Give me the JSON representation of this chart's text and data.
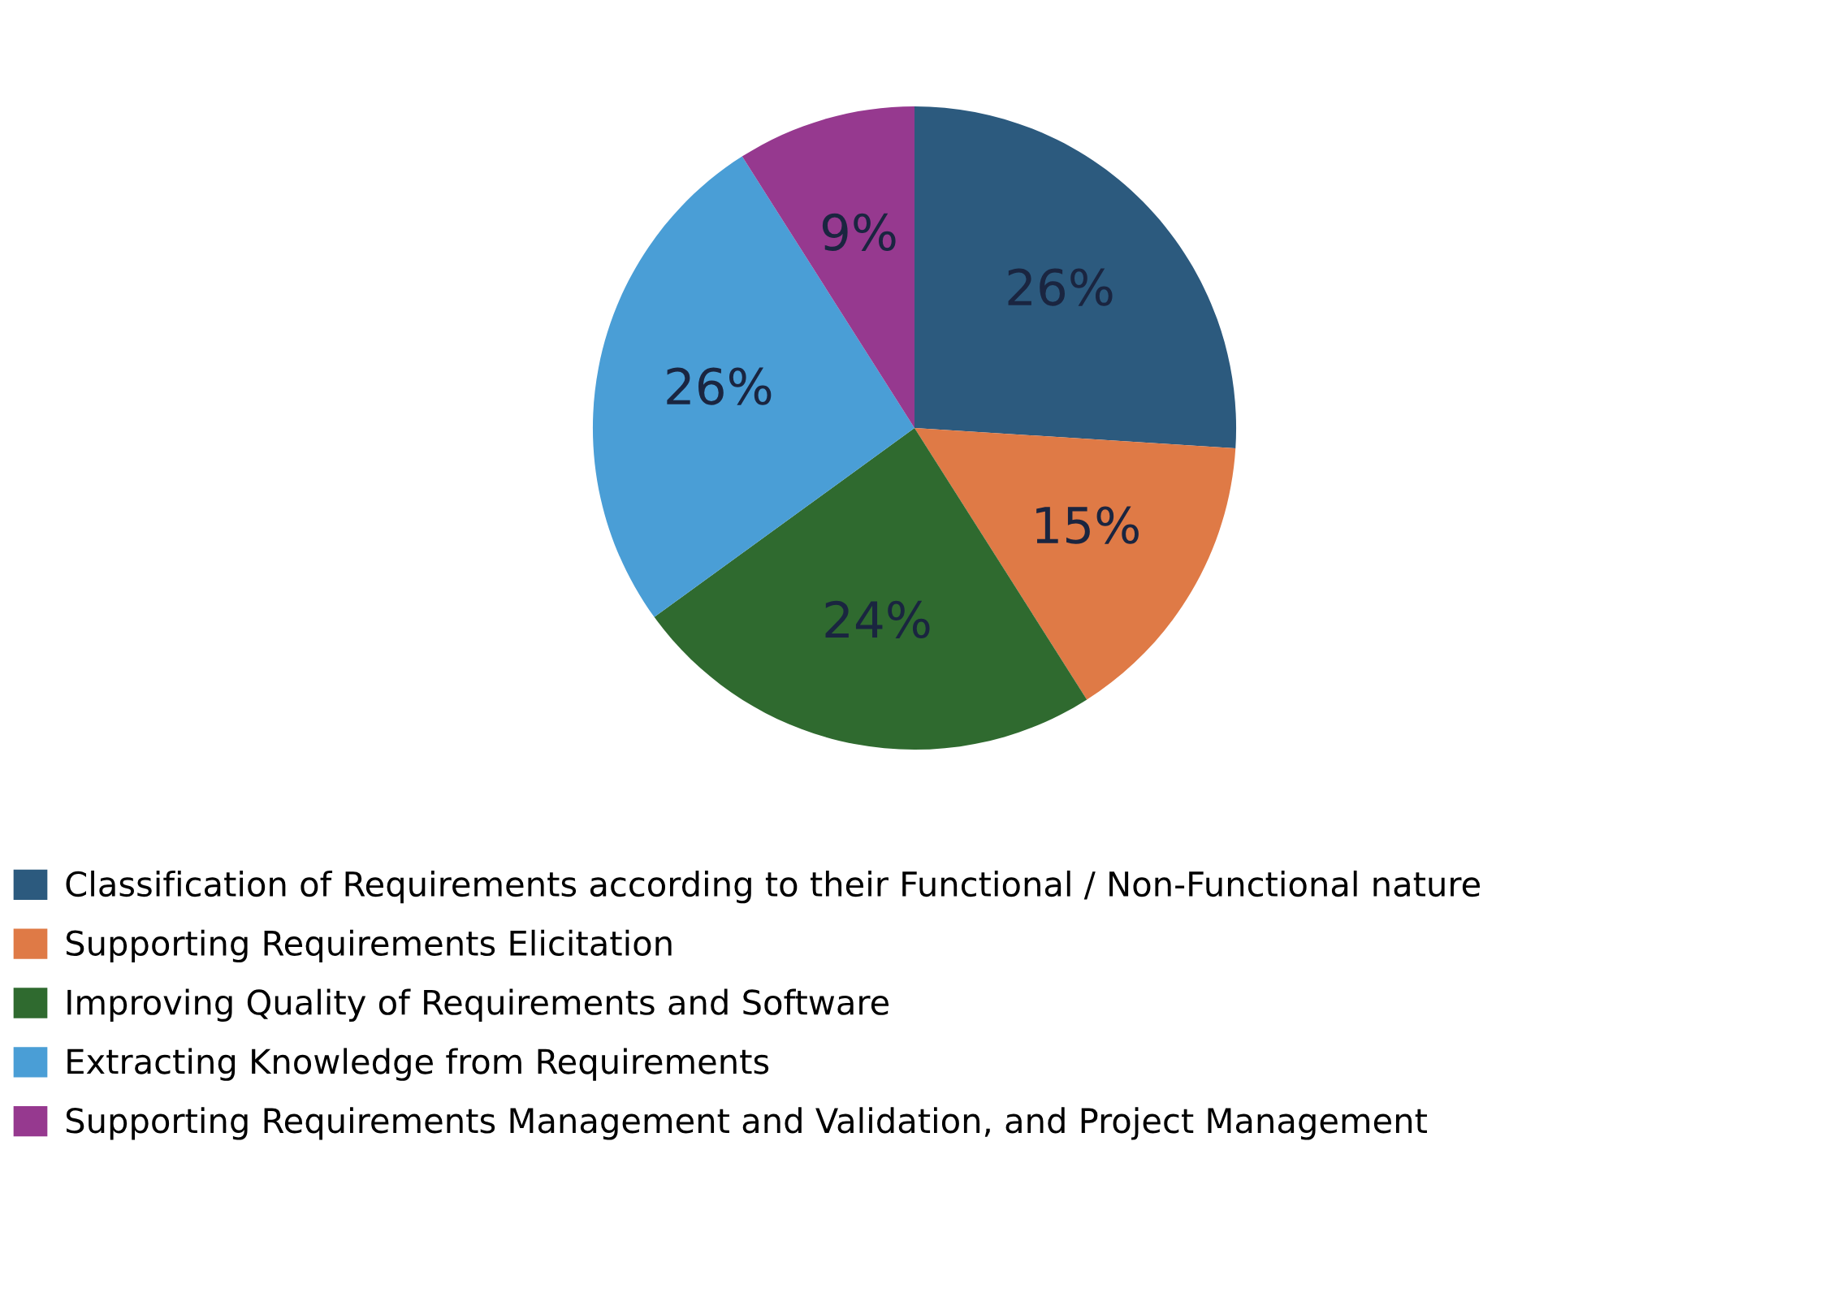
{
  "chart_data": {
    "type": "pie",
    "categories": [
      "Classification of Requirements according to their Functional / Non-Functional nature",
      "Supporting Requirements Elicitation",
      "Improving Quality of Requirements and Software",
      "Extracting Knowledge from Requirements",
      "Supporting Requirements Management and Validation, and Project Management"
    ],
    "values": [
      26,
      15,
      24,
      26,
      9
    ],
    "colors": [
      "#2c5a7e",
      "#df7a46",
      "#2f6a2f",
      "#4a9ed6",
      "#96398f"
    ],
    "value_labels": [
      "26%",
      "15%",
      "24%",
      "26%",
      "9%"
    ],
    "legend": "bottom"
  }
}
